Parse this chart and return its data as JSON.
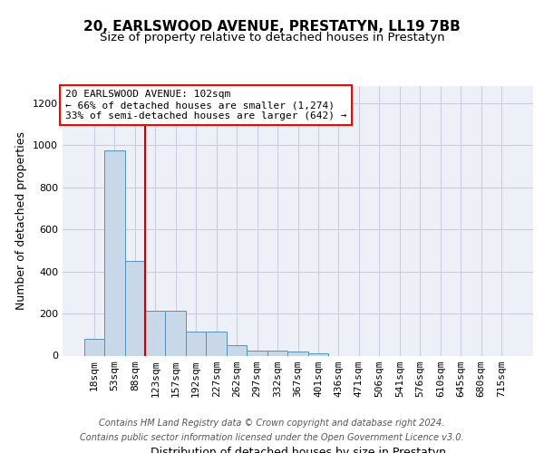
{
  "title1": "20, EARLSWOOD AVENUE, PRESTATYN, LL19 7BB",
  "title2": "Size of property relative to detached houses in Prestatyn",
  "xlabel": "Distribution of detached houses by size in Prestatyn",
  "ylabel": "Number of detached properties",
  "categories": [
    "18sqm",
    "53sqm",
    "88sqm",
    "123sqm",
    "157sqm",
    "192sqm",
    "227sqm",
    "262sqm",
    "297sqm",
    "332sqm",
    "367sqm",
    "401sqm",
    "436sqm",
    "471sqm",
    "506sqm",
    "541sqm",
    "576sqm",
    "610sqm",
    "645sqm",
    "680sqm",
    "715sqm"
  ],
  "values": [
    80,
    975,
    450,
    215,
    215,
    115,
    115,
    48,
    23,
    23,
    18,
    12,
    0,
    0,
    0,
    0,
    0,
    0,
    0,
    0,
    0
  ],
  "bar_color": "#c8d8e8",
  "bar_edge_color": "#5590bb",
  "red_line_x": 2.5,
  "annotation_line1": "20 EARLSWOOD AVENUE: 102sqm",
  "annotation_line2": "← 66% of detached houses are smaller (1,274)",
  "annotation_line3": "33% of semi-detached houses are larger (642) →",
  "annotation_box_color": "white",
  "annotation_box_edge_color": "red",
  "red_line_color": "#cc0000",
  "grid_color": "#ccccdd",
  "bg_color": "#eef0f8",
  "footer_line1": "Contains HM Land Registry data © Crown copyright and database right 2024.",
  "footer_line2": "Contains public sector information licensed under the Open Government Licence v3.0.",
  "ylim": [
    0,
    1280
  ],
  "yticks": [
    0,
    200,
    400,
    600,
    800,
    1000,
    1200
  ],
  "title1_fontsize": 11,
  "title2_fontsize": 9.5,
  "xlabel_fontsize": 9,
  "ylabel_fontsize": 9,
  "tick_fontsize": 8,
  "annotation_fontsize": 8,
  "footer_fontsize": 7
}
